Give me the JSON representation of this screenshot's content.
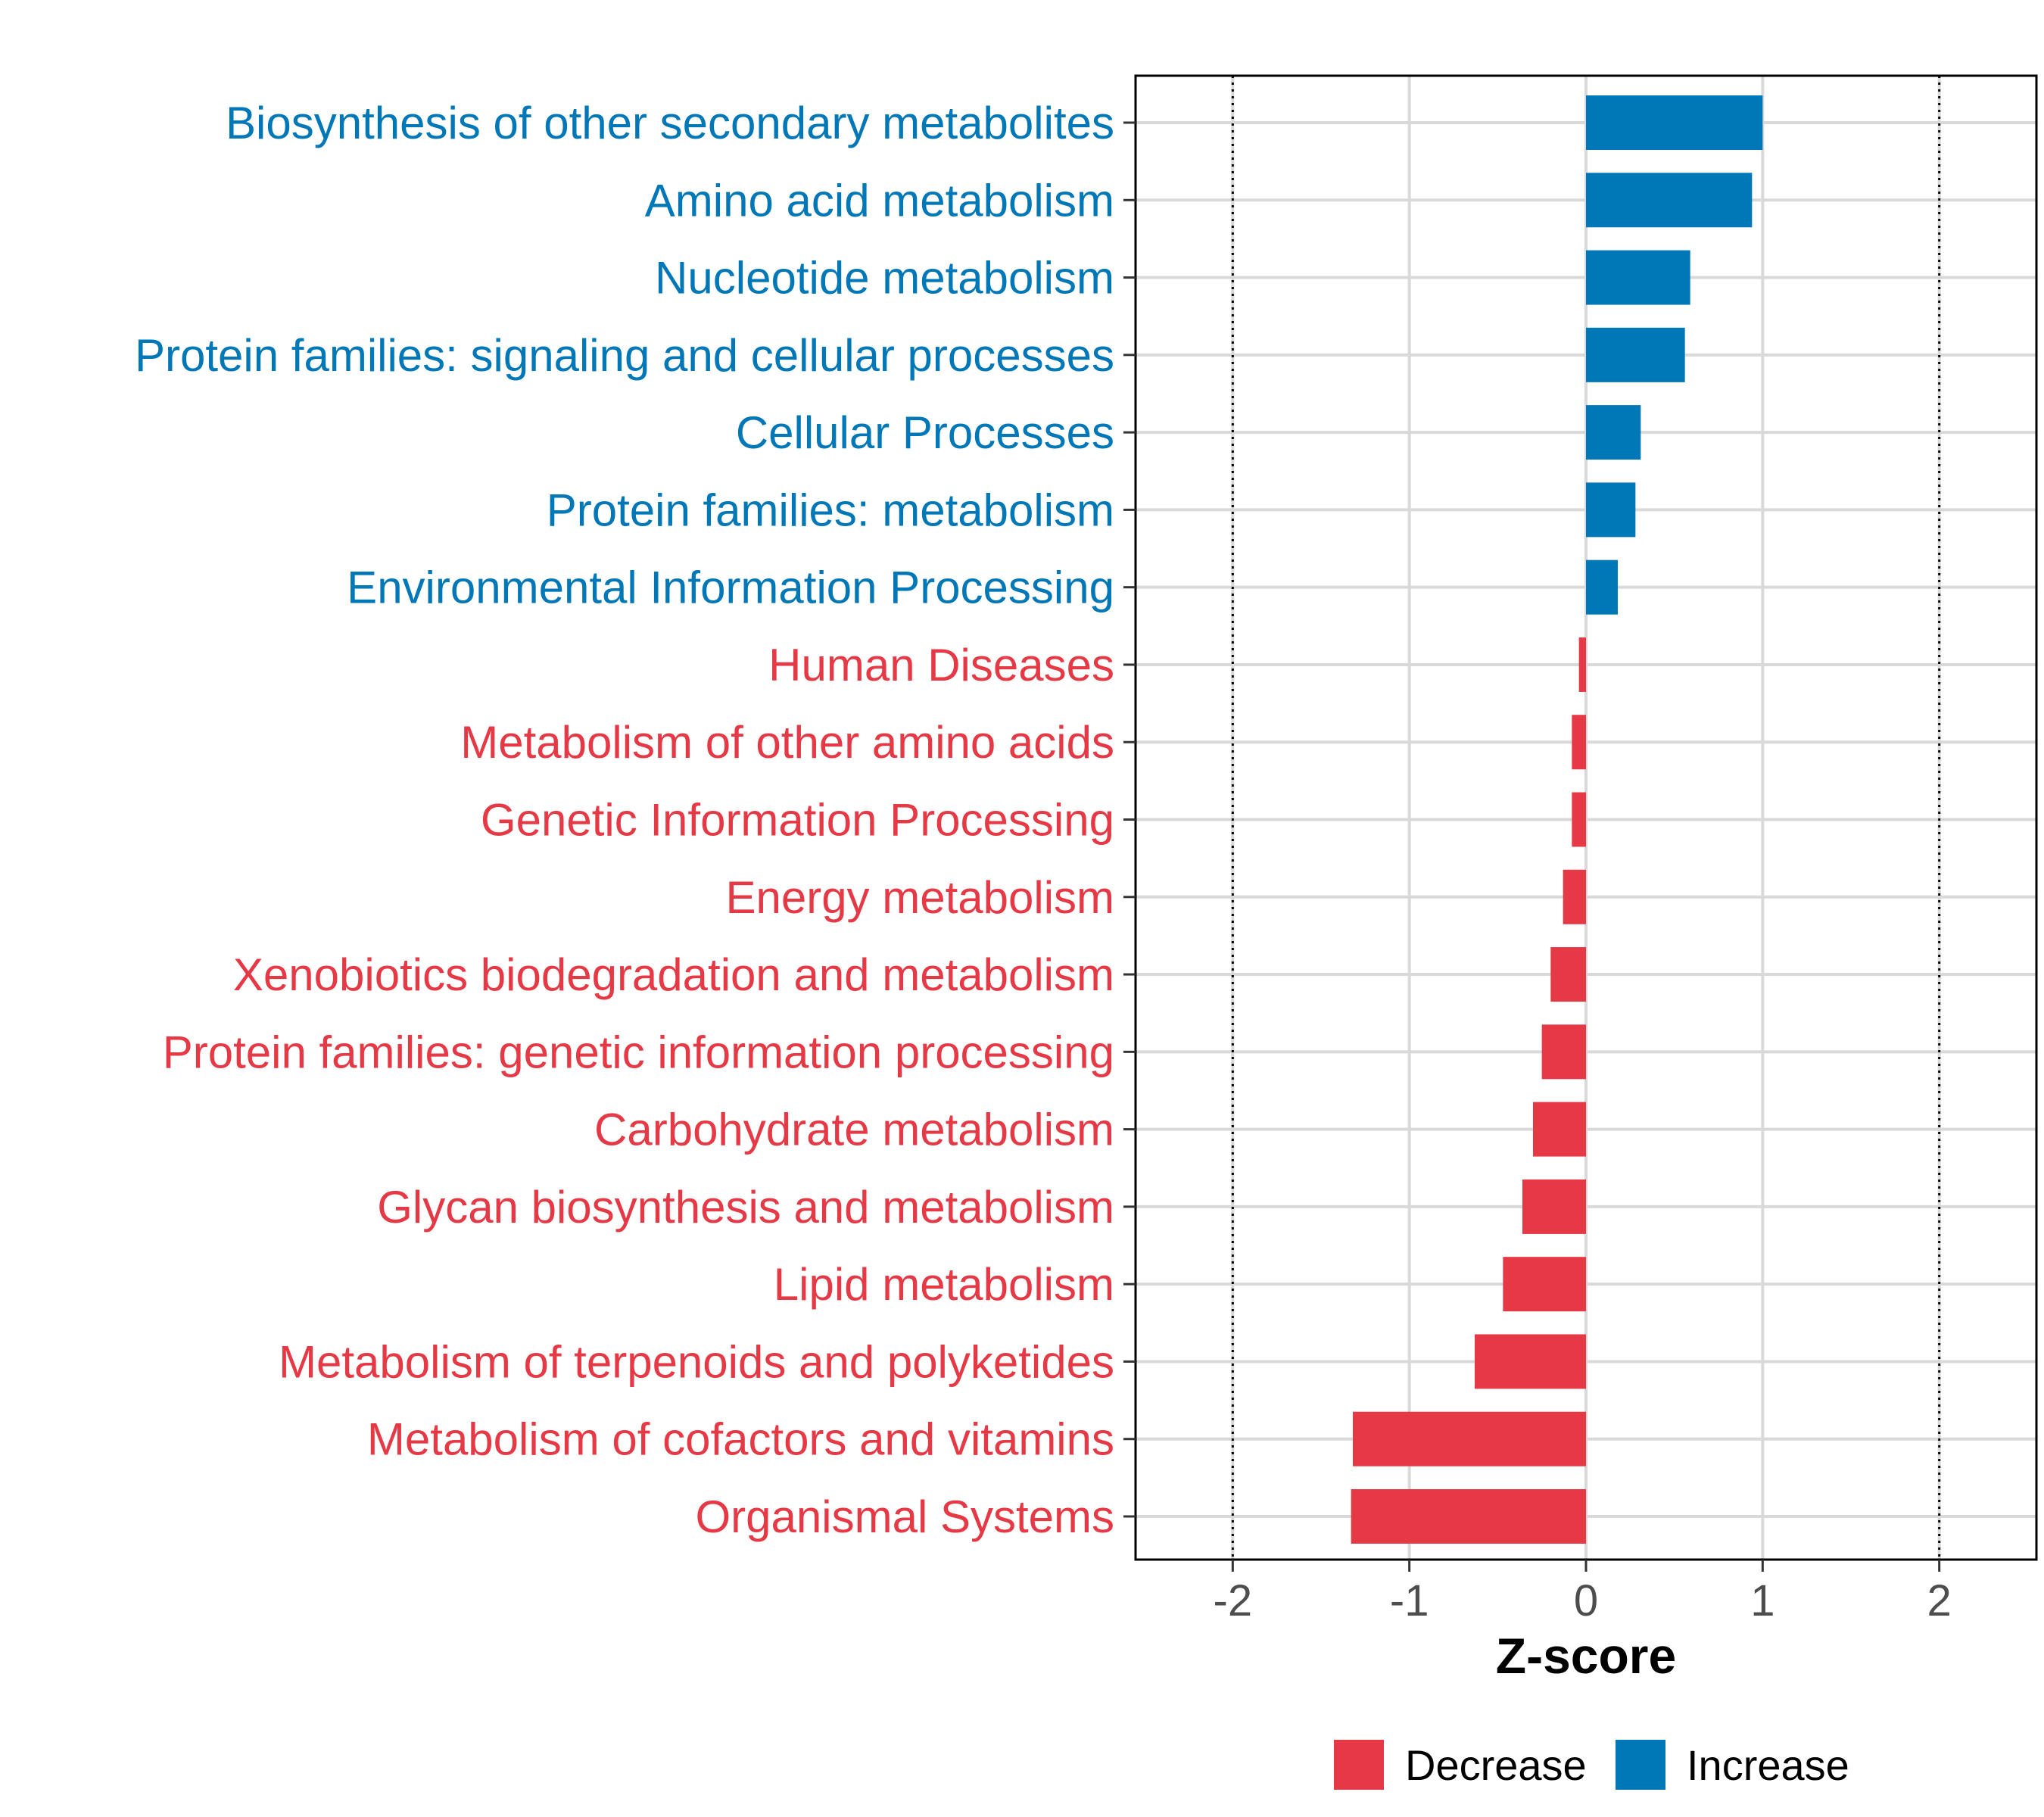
{
  "chart_data": {
    "type": "bar",
    "orientation": "horizontal",
    "title": "",
    "xlabel": "Z-score",
    "ylabel": "",
    "xlim": [
      -2.55,
      2.55
    ],
    "xticks": [
      -2,
      -1,
      0,
      1,
      2
    ],
    "xtick_labels": [
      "-2",
      "-1",
      "0",
      "1",
      "2"
    ],
    "reference_lines": [
      -2,
      2
    ],
    "grid": true,
    "categories": [
      "Biosynthesis of other secondary metabolites",
      "Amino acid metabolism",
      "Nucleotide metabolism",
      "Protein families: signaling and cellular processes",
      "Cellular Processes",
      "Protein families: metabolism",
      "Environmental Information Processing",
      "Human Diseases",
      "Metabolism of other amino acids",
      "Genetic Information Processing",
      "Energy metabolism",
      "Xenobiotics biodegradation and metabolism",
      "Protein families: genetic information processing",
      "Carbohydrate metabolism",
      "Glycan biosynthesis and metabolism",
      "Lipid metabolism",
      "Metabolism of terpenoids and polyketides",
      "Metabolism of cofactors and vitamins",
      "Organismal Systems"
    ],
    "values": [
      1.0,
      0.94,
      0.59,
      0.56,
      0.31,
      0.28,
      0.18,
      -0.04,
      -0.08,
      -0.08,
      -0.13,
      -0.2,
      -0.25,
      -0.3,
      -0.36,
      -0.47,
      -0.63,
      -1.32,
      -1.33
    ],
    "groups": [
      "Increase",
      "Increase",
      "Increase",
      "Increase",
      "Increase",
      "Increase",
      "Increase",
      "Decrease",
      "Decrease",
      "Decrease",
      "Decrease",
      "Decrease",
      "Decrease",
      "Decrease",
      "Decrease",
      "Decrease",
      "Decrease",
      "Decrease",
      "Decrease"
    ],
    "colors": {
      "Decrease": "#E63946",
      "Increase": "#0077B6"
    },
    "legend": {
      "position": "bottom",
      "items": [
        "Decrease",
        "Increase"
      ]
    }
  }
}
